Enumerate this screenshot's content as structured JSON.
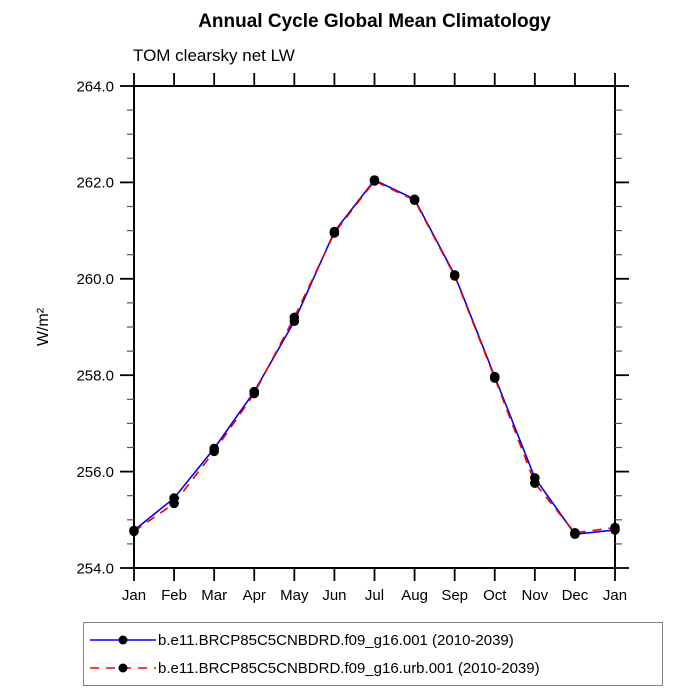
{
  "window": {
    "background": "#ffffff"
  },
  "chart_data": {
    "type": "line",
    "title": "Annual Cycle Global Mean Climatology",
    "subtitle": "TOM clearsky net LW",
    "ylabel": "W/m²",
    "xlabel": "",
    "categories": [
      "Jan",
      "Feb",
      "Mar",
      "Apr",
      "May",
      "Jun",
      "Jul",
      "Aug",
      "Sep",
      "Oct",
      "Nov",
      "Dec",
      "Jan"
    ],
    "series": [
      {
        "name": "b.e11.BRCP85C5CNBDRD.f09_g16.001 (2010-2039)",
        "color": "#0000ee",
        "line_style": "solid",
        "marker": "black-filled-circle",
        "values": [
          254.78,
          255.45,
          256.48,
          257.66,
          259.12,
          260.98,
          262.05,
          261.65,
          260.08,
          257.97,
          255.87,
          254.7,
          254.79
        ]
      },
      {
        "name": "b.e11.BRCP85C5CNBDRD.f09_g16.urb.001 (2010-2039)",
        "color": "#ee0000",
        "line_style": "dashed",
        "marker": "black-filled-circle",
        "values": [
          254.76,
          255.34,
          256.42,
          257.62,
          259.2,
          260.95,
          262.03,
          261.63,
          260.06,
          257.94,
          255.76,
          254.73,
          254.84
        ]
      }
    ],
    "ylim": [
      254.0,
      264.0
    ],
    "ytick_values": [
      254.0,
      256.0,
      258.0,
      260.0,
      262.0,
      264.0
    ],
    "ytick_labels": [
      "254.0",
      "256.0",
      "258.0",
      "260.0",
      "262.0",
      "264.0"
    ],
    "ytick_minor_step": 0.5,
    "grid": false,
    "frame": "all-four-sides",
    "ticks_direction": "outward",
    "legend_position": "bottom",
    "marker_color": "#000000",
    "axis_color": "#000000"
  }
}
